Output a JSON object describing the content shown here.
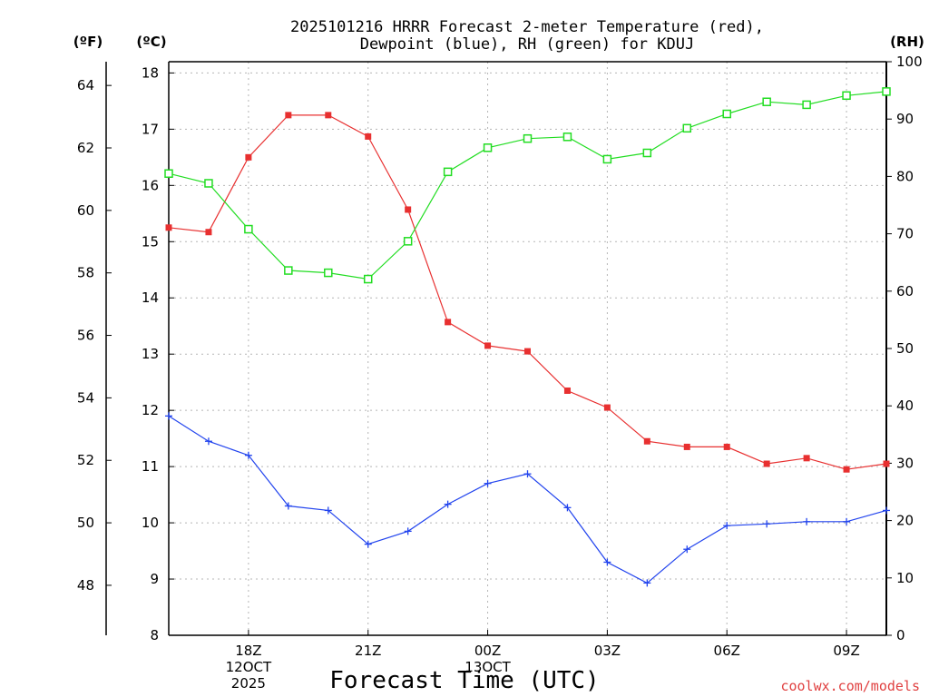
{
  "chart_data": {
    "type": "line",
    "title_line1": "2025101216 HRRR Forecast 2-meter Temperature (red),",
    "title_line2": "Dewpoint (blue), RH (green) for KDUJ",
    "xlabel": "Forecast Time (UTC)",
    "credit": "coolwx.com/models",
    "unit_f": "(ºF)",
    "unit_c": "(ºC)",
    "unit_rh": "(RH)",
    "x_hours": [
      16,
      17,
      18,
      19,
      20,
      21,
      22,
      23,
      24,
      25,
      26,
      27,
      28,
      29,
      30,
      31,
      32,
      33,
      34
    ],
    "xlim": [
      16,
      34
    ],
    "x_ticks": [
      {
        "hour": 18,
        "lines": [
          "18Z",
          "12OCT",
          "2025"
        ]
      },
      {
        "hour": 21,
        "lines": [
          "21Z"
        ]
      },
      {
        "hour": 24,
        "lines": [
          "00Z",
          "13OCT"
        ]
      },
      {
        "hour": 27,
        "lines": [
          "03Z"
        ]
      },
      {
        "hour": 30,
        "lines": [
          "06Z"
        ]
      },
      {
        "hour": 33,
        "lines": [
          "09Z"
        ]
      }
    ],
    "ylim_c": [
      8,
      18.2
    ],
    "yticks_c": [
      8,
      9,
      10,
      11,
      12,
      13,
      14,
      15,
      16,
      17,
      18
    ],
    "yticks_f": [
      48,
      50,
      52,
      54,
      56,
      58,
      60,
      62,
      64
    ],
    "ylim_rh": [
      0,
      100
    ],
    "yticks_rh": [
      0,
      10,
      20,
      30,
      40,
      50,
      60,
      70,
      80,
      90,
      100
    ],
    "series": [
      {
        "name": "2-meter Temperature",
        "axis": "C",
        "color": "#e83030",
        "marker": "filled-square",
        "values": [
          15.25,
          15.17,
          16.5,
          17.25,
          17.25,
          16.87,
          15.57,
          13.57,
          13.15,
          13.05,
          12.35,
          12.05,
          11.45,
          11.35,
          11.35,
          11.05,
          11.15,
          10.95,
          11.05
        ]
      },
      {
        "name": "Dewpoint",
        "axis": "C",
        "color": "#2244ee",
        "marker": "plus",
        "values": [
          11.9,
          11.45,
          11.2,
          10.3,
          10.22,
          9.62,
          9.85,
          10.33,
          10.7,
          10.87,
          10.27,
          9.3,
          8.93,
          9.53,
          9.95,
          9.98,
          10.02,
          10.02,
          10.22
        ]
      },
      {
        "name": "RH",
        "axis": "RH",
        "color": "#22dd22",
        "marker": "open-square",
        "values": [
          80.5,
          78.8,
          70.8,
          63.6,
          63.2,
          62.1,
          68.7,
          80.8,
          85.0,
          86.6,
          86.9,
          83.0,
          84.1,
          88.4,
          90.9,
          93.0,
          92.5,
          94.1,
          94.8
        ]
      }
    ]
  }
}
